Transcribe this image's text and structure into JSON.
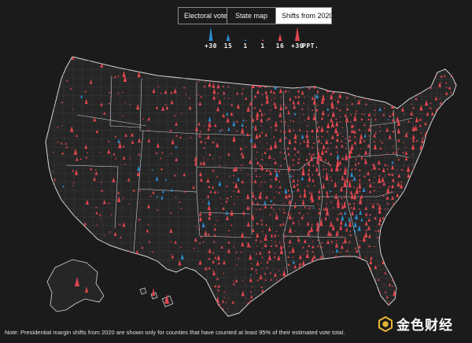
{
  "tabs": [
    {
      "label": "Electoral votes",
      "active": false
    },
    {
      "label": "State map",
      "active": false
    },
    {
      "label": "Shifts from 2020",
      "active": true
    }
  ],
  "legend": {
    "items": [
      {
        "label": "+30",
        "party": "dem",
        "size": 5
      },
      {
        "label": "15",
        "party": "dem",
        "size": 3
      },
      {
        "label": "1",
        "party": "dem",
        "size": 1
      },
      {
        "label": "1",
        "party": "rep",
        "size": 1
      },
      {
        "label": "16",
        "party": "rep",
        "size": 3
      },
      {
        "label": "+30",
        "party": "rep",
        "size": 5
      }
    ],
    "unit": "PPT."
  },
  "colors": {
    "background": "#1b1b1b",
    "rep": "#e0464f",
    "dem": "#2b8fd6",
    "state_border": "#d9d9d9",
    "county_border": "#3a3a3a"
  },
  "note": "Note: Presidential margin shifts from 2020 are shown only for counties that have counted at least 95% of their estimated vote total.",
  "watermark": {
    "text": "金色财经",
    "icon": "jinse-logo-icon"
  }
}
